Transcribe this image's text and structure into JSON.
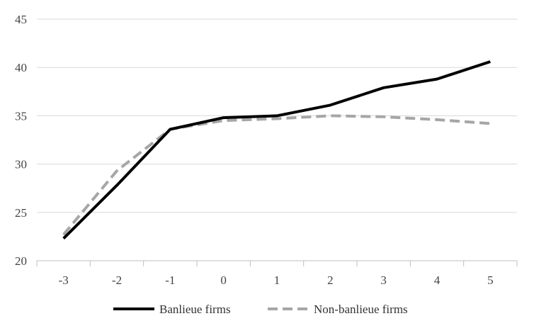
{
  "chart_data": {
    "type": "line",
    "x": [
      -3,
      -2,
      -1,
      0,
      1,
      2,
      3,
      4,
      5
    ],
    "x_tick_labels": [
      "-3",
      "-2",
      "-1",
      "0",
      "1",
      "2",
      "3",
      "4",
      "5"
    ],
    "y_tick_values": [
      20,
      25,
      30,
      35,
      40,
      45
    ],
    "y_tick_labels": [
      "20",
      "25",
      "30",
      "35",
      "40",
      "45"
    ],
    "ylim": [
      20,
      45
    ],
    "title": "",
    "xlabel": "",
    "ylabel": "",
    "grid": "horizontal",
    "legend_position": "bottom-center",
    "series": [
      {
        "name": "Banlieue firms",
        "style": "solid",
        "color": "#000000",
        "values": [
          22.3,
          27.8,
          33.6,
          34.8,
          35.0,
          36.1,
          37.9,
          38.8,
          40.6
        ]
      },
      {
        "name": "Non-banlieue firms",
        "style": "dashed",
        "color": "#a6a6a6",
        "values": [
          22.7,
          29.3,
          33.6,
          34.5,
          34.7,
          35.0,
          34.9,
          34.6,
          34.2
        ]
      }
    ]
  }
}
